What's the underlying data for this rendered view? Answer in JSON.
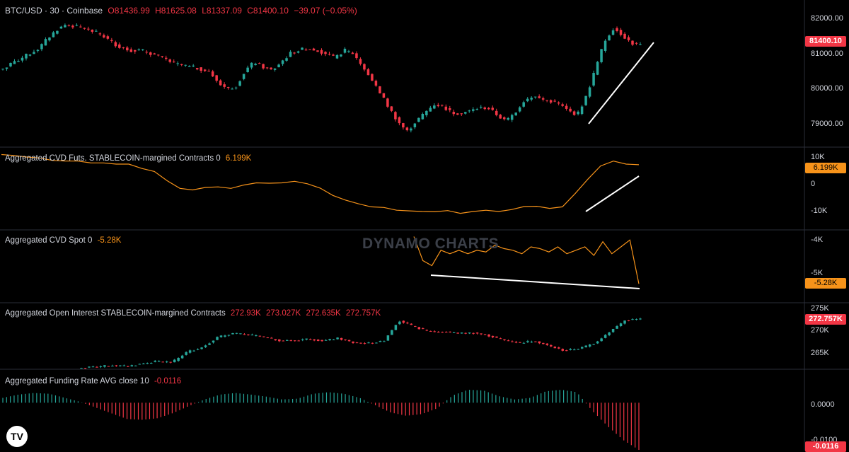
{
  "header": {
    "symbol": "BTC/USD · 30 · Coinbase",
    "open": "O81436.99",
    "high": "H81625.08",
    "low": "L81337.09",
    "close": "C81400.10",
    "change": "−39.07 (−0.05%)"
  },
  "price_pane": {
    "ticks": [
      "82000.00",
      "81000.00",
      "80000.00",
      "79000.00"
    ],
    "last_badge": "81400.10"
  },
  "cvd_futs": {
    "label": "Aggregated CVD Futs. STABLECOIN-margined Contracts 0",
    "value": "6.199K",
    "ticks": [
      "10K",
      "0",
      "-10K"
    ],
    "badge": "6.199K"
  },
  "cvd_spot": {
    "label": "Aggregated CVD Spot 0",
    "value": "-5.28K",
    "ticks": [
      "-4K",
      "-5K"
    ],
    "badge": "-5.28K"
  },
  "open_interest": {
    "label": "Aggregated Open Interest STABLECOIN-margined Contracts",
    "values": [
      "272.93K",
      "273.027K",
      "272.635K",
      "272.757K"
    ],
    "ticks": [
      "275K",
      "270K",
      "265K"
    ],
    "badge": "272.757K"
  },
  "funding": {
    "label": "Aggregated Funding Rate AVG close 10",
    "value": "-0.0116",
    "ticks": [
      "0.0000",
      "-0.0100"
    ],
    "badge": "-0.0116"
  },
  "watermark": "DYNAMO CHARTS",
  "logo": "TV",
  "colors": {
    "bull": "#26a69a",
    "bear": "#f23645",
    "cvd_line": "#f7931a",
    "separator": "#2a2e39"
  },
  "chart_data": [
    {
      "type": "candlestick",
      "title": "BTC/USD · 30 · Coinbase",
      "ylim": [
        78600,
        82350
      ],
      "series": [
        {
          "close_path": [
            80700,
            80850,
            81000,
            81150,
            81300,
            81600,
            81850,
            82000,
            81950,
            81900,
            81800,
            81700,
            81500,
            81350,
            81250,
            81250,
            81200,
            81100,
            81000,
            80850,
            80800,
            80750,
            80700,
            80600,
            80300,
            80100,
            80200,
            80650,
            80900,
            80750,
            80650,
            80900,
            81150,
            81250,
            81300,
            81250,
            81150,
            81000,
            81250,
            81150,
            80800,
            80400,
            80000,
            79550,
            79150,
            78850,
            79150,
            79400,
            79650,
            79600,
            79400,
            79400,
            79450,
            79550,
            79550,
            79350,
            79150,
            79400,
            79750,
            79900,
            79800,
            79750,
            79650,
            79450,
            79350,
            79900,
            80700,
            81500,
            81900,
            81700,
            81450,
            81400
          ]
        }
      ]
    },
    {
      "type": "line",
      "title": "Aggregated CVD Futs. STABLECOIN-margined Contracts 0",
      "ylim": [
        -12000,
        11000
      ],
      "series": [
        {
          "values": [
            9500,
            9200,
            8700,
            8400,
            7600,
            7400,
            7400,
            6800,
            6800,
            6400,
            6400,
            5000,
            4000,
            1000,
            -1500,
            -2000,
            -1200,
            -1000,
            -1500,
            -400,
            300,
            200,
            300,
            800,
            0,
            -1400,
            -3800,
            -5300,
            -6500,
            -7500,
            -7700,
            -8600,
            -8800,
            -9000,
            -9100,
            -8700,
            -9600,
            -9000,
            -8600,
            -9000,
            -8400,
            -7400,
            -7300,
            -8000,
            -7500,
            -3200,
            1500,
            5800,
            7400,
            6400,
            6199
          ]
        }
      ]
    },
    {
      "type": "line",
      "title": "Aggregated CVD Spot 0",
      "ylim": [
        -5500,
        -3850
      ],
      "series": [
        {
          "values": [
            -3900,
            -4600,
            -4750,
            -4300,
            -4400,
            -4300,
            -4400,
            -4300,
            -4350,
            -4150,
            -4250,
            -4300,
            -4400,
            -4200,
            -4250,
            -4350,
            -4200,
            -4400,
            -4300,
            -4200,
            -4450,
            -4050,
            -4400,
            -4200,
            -4000,
            -5280
          ]
        }
      ]
    },
    {
      "type": "candlestick",
      "title": "Aggregated Open Interest STABLECOIN-margined Contracts",
      "ylim": [
        263000,
        276000
      ],
      "series": [
        {
          "close_path": [
            263000,
            263200,
            263500,
            263300,
            263800,
            264300,
            264100,
            266200,
            267100,
            269100,
            269900,
            269600,
            269200,
            268500,
            268400,
            268800,
            268400,
            268900,
            268000,
            267900,
            268300,
            272500,
            271200,
            270300,
            270200,
            269900,
            270000,
            269400,
            268500,
            268000,
            268400,
            267300,
            266400,
            266900,
            268000,
            270300,
            272500,
            272757
          ]
        }
      ]
    },
    {
      "type": "histogram",
      "title": "Aggregated Funding Rate AVG close 10",
      "ylim": [
        -0.0116,
        0.0065
      ],
      "series": [
        {
          "values": [
            0.0012,
            0.002,
            0.0024,
            0.0022,
            0.0012,
            0.0002,
            -0.0012,
            -0.0026,
            -0.004,
            -0.0042,
            -0.0038,
            -0.0025,
            -0.0008,
            0.0008,
            0.002,
            0.0024,
            0.002,
            0.0015,
            0.0008,
            0.001,
            0.0022,
            0.0026,
            0.0022,
            0.0012,
            -0.0006,
            -0.0024,
            -0.0032,
            -0.0028,
            -0.0014,
            0.0018,
            0.0032,
            0.003,
            0.0016,
            0.0008,
            0.0012,
            0.0028,
            0.0032,
            0.0026,
            -0.002,
            -0.0058,
            -0.0092,
            -0.0116
          ]
        }
      ]
    }
  ]
}
